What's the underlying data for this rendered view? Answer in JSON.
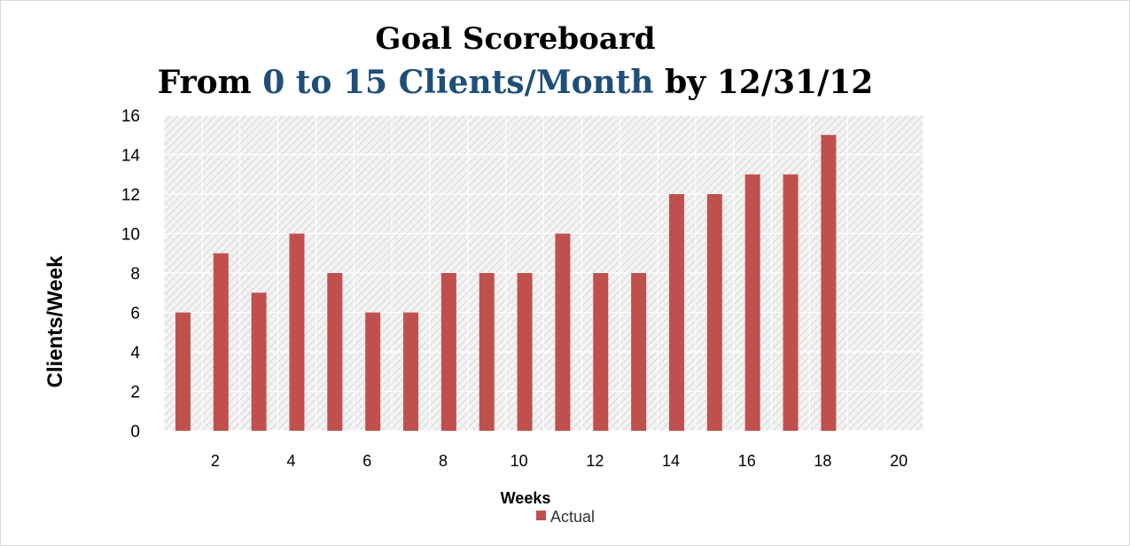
{
  "title": {
    "line1": "Goal Scoreboard",
    "line2_prefix": "From ",
    "line2_accent": "0 to 15 Clients/Month",
    "line2_suffix": " by 12/31/12",
    "accent_color": "#1f4e79"
  },
  "chart_data": {
    "type": "bar",
    "categories": [
      "1",
      "2",
      "3",
      "4",
      "5",
      "6",
      "7",
      "8",
      "9",
      "10",
      "11",
      "12",
      "13",
      "14",
      "15",
      "16",
      "17",
      "18",
      "19",
      "20"
    ],
    "series": [
      {
        "name": "Actual",
        "color": "#c0504d",
        "values": [
          6,
          9,
          7,
          10,
          8,
          6,
          6,
          8,
          8,
          8,
          10,
          8,
          8,
          12,
          12,
          13,
          13,
          15,
          null,
          null
        ]
      }
    ],
    "x_tick_labels": [
      "",
      "2",
      "",
      "4",
      "",
      "6",
      "",
      "8",
      "",
      "10",
      "",
      "12",
      "",
      "14",
      "",
      "16",
      "",
      "18",
      "",
      "20"
    ],
    "xlabel": "Weeks",
    "ylabel": "Clients/Week",
    "ylim": [
      0,
      16
    ],
    "yticks": [
      0,
      2,
      4,
      6,
      8,
      10,
      12,
      14,
      16
    ],
    "grid": true,
    "plot_background": "hatched light gray",
    "legend_position": "bottom-center"
  }
}
